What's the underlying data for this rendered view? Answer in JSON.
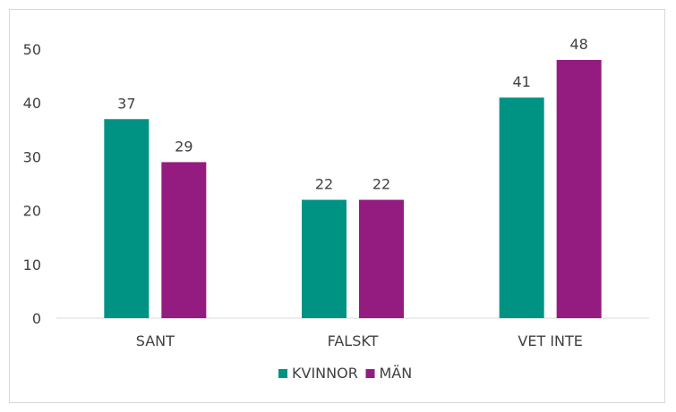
{
  "chart_data": {
    "type": "bar",
    "categories": [
      "SANT",
      "FALSKT",
      "VET INTE"
    ],
    "series": [
      {
        "name": "KVINNOR",
        "values": [
          37,
          22,
          41
        ],
        "color": "#009384"
      },
      {
        "name": "MÄN",
        "values": [
          29,
          22,
          48
        ],
        "color": "#941b80"
      }
    ],
    "yticks": [
      "0",
      "10",
      "20",
      "30",
      "40",
      "50"
    ],
    "ylim": [
      0,
      50
    ],
    "grid": false,
    "legend_position": "bottom",
    "axis_color": "#d9d9d9",
    "text_color": "#404040"
  }
}
